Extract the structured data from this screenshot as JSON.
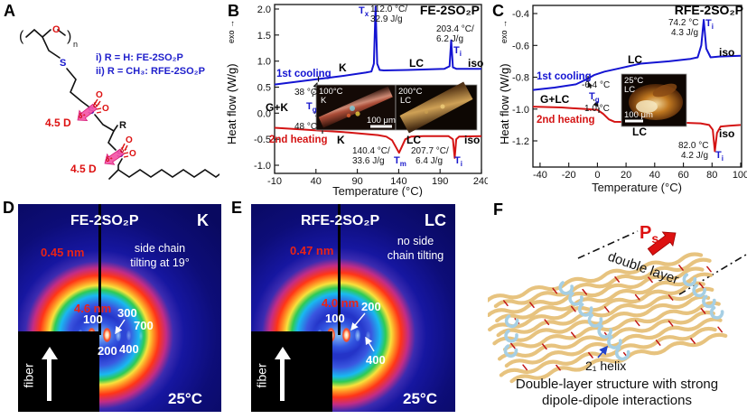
{
  "panels": {
    "a": {
      "letter": "A",
      "series_i": "i) R = H: FE-2SO₂P",
      "series_ii": "ii) R = CH₃: RFE-2SO₂P",
      "dipole_1": "4.5 D",
      "dipole_2": "4.5 D",
      "atom_o_backbone": "O",
      "atom_s_thioether": "S",
      "atom_s_sulfonyl_1": "S",
      "atom_s_sulfonyl_2": "S",
      "atom_o_1a": "O",
      "atom_o_1b": "O",
      "atom_o_2a": "O",
      "atom_o_2b": "O",
      "r_group": "R",
      "n_sub": "n",
      "paren_l": "(",
      "paren_r": ")",
      "delta_minus_1": "δ⁻",
      "delta_plus_1": "δ⁺",
      "delta_minus_2": "δ⁻",
      "delta_plus_2": "δ⁺"
    },
    "b": {
      "letter": "B",
      "title": "FE-2SO₂P",
      "ylabel": "Heat flow (W/g)",
      "exo": "exo →",
      "xlabel": "Temperature (°C)",
      "yticks": [
        "2.0",
        "1.5",
        "1.0",
        "0.5",
        "0.0",
        "-0.5",
        "-1.0"
      ],
      "xticks": [
        "-10",
        "40",
        "90",
        "140",
        "190",
        "240"
      ],
      "cooling_label": "1st cooling",
      "heating_label": "2nd heating",
      "phase_cool_k": "K",
      "phase_cool_lc": "LC",
      "phase_cool_iso": "iso",
      "phase_heat_k": "K",
      "phase_heat_lc": "LC",
      "phase_heat_iso": "iso",
      "phase_gk": "G+K",
      "tx": {
        "t": "T",
        "s": "x"
      },
      "tx_temp": "112.0 °C/",
      "tx_j": "32.9 J/g",
      "ti_cool_temp": "203.4 °C/",
      "ti_cool_j": "6.2 J/g",
      "ti_cool": {
        "t": "T",
        "s": "i"
      },
      "tg": {
        "t": "T",
        "s": "g"
      },
      "tg_cool": "38 °C",
      "tg_heat": "48 °C",
      "tm_temp": "140.4 °C/",
      "tm_j": "33.6 J/g",
      "tm": {
        "t": "T",
        "s": "m"
      },
      "ti_heat_temp": "207.7 °C/",
      "ti_heat_j": "6.4 J/g",
      "ti_heat": {
        "t": "T",
        "s": "i"
      },
      "inset": {
        "img1_temp": "100°C",
        "img1_phase": "K",
        "img2_temp": "200°C",
        "img2_phase": "LC",
        "scale": "100 μm"
      }
    },
    "c": {
      "letter": "C",
      "title": "RFE-2SO₂P",
      "ylabel": "Heat flow (W/g)",
      "exo": "exo →",
      "xlabel": "Temperature (°C)",
      "yticks": [
        "-0.4",
        "-0.6",
        "-0.8",
        "-1.0",
        "-1.2"
      ],
      "xticks": [
        "-40",
        "-20",
        "0",
        "20",
        "40",
        "60",
        "80",
        "100"
      ],
      "cooling_label": "1st cooling",
      "heating_label": "2nd heating",
      "phase_cool_lc": "LC",
      "phase_cool_iso": "iso",
      "phase_heat_lc": "LC",
      "phase_heat_iso": "iso",
      "phase_glc": "G+LC",
      "ti_cool_temp": "74.2 °C",
      "ti_cool_j": "4.3 J/g",
      "ti_cool": {
        "t": "T",
        "s": "i"
      },
      "tg": {
        "t": "T",
        "s": "g"
      },
      "tg_cool": "-6.4 °C",
      "tg_heat": "1.0 °C",
      "ti_heat_temp": "82.0 °C",
      "ti_heat_j": "4.2 J/g",
      "ti_heat": {
        "t": "T",
        "s": "i"
      },
      "inset": {
        "img_temp": "25°C",
        "img_phase": "LC",
        "scale": "100 μm"
      }
    },
    "d": {
      "letter": "D",
      "title": "FE-2SO₂P",
      "phase": "K",
      "note1": "side chain",
      "note2": "tilting at 19°",
      "ring_label": "0.45 nm",
      "inner_label": "4.6 nm",
      "idx_100": "100",
      "idx_200": "200",
      "idx_300": "300",
      "idx_400": "400",
      "idx_700": "700",
      "fiber": "fiber",
      "temp": "25°C"
    },
    "e": {
      "letter": "E",
      "title": "RFE-2SO₂P",
      "phase": "LC",
      "note1": "no side",
      "note2": "chain tilting",
      "ring_label": "0.47 nm",
      "inner_label": "4.0 nm",
      "idx_100": "100",
      "idx_200": "200",
      "idx_400": "400",
      "fiber": "fiber",
      "temp": "25°C"
    },
    "f": {
      "letter": "F",
      "ps": {
        "t": "P",
        "s": "s"
      },
      "double_layer": "double layer",
      "helix_label": "2₁ helix",
      "caption1": "Double-layer structure with strong",
      "caption2": "dipole-dipole interactions"
    }
  },
  "colors": {
    "cooling_blue": "#1414d2",
    "heating_red": "#d41414",
    "annotation_blue": "#1818cc",
    "structure_red": "#dd1111",
    "arrow_pink": "#f553a6",
    "xrd_label_red": "#e82318"
  },
  "chart_data": [
    {
      "panel": "B",
      "type": "line",
      "title": "FE-2SO₂P",
      "xlabel": "Temperature (°C)",
      "ylabel": "Heat flow (W/g)",
      "exo_direction": "up",
      "x_range": [
        -10,
        240
      ],
      "y_range": [
        -1.0,
        2.0
      ],
      "x_ticks": [
        -10,
        40,
        90,
        140,
        190,
        240
      ],
      "y_ticks": [
        2.0,
        1.5,
        1.0,
        0.5,
        0.0,
        -0.5,
        -1.0
      ],
      "series": [
        {
          "name": "1st cooling",
          "color": "#1414d2",
          "points": [
            [
              -10,
              0.55
            ],
            [
              30,
              0.63
            ],
            [
              70,
              0.71
            ],
            [
              100,
              0.78
            ],
            [
              107,
              0.8
            ],
            [
              110,
              0.95
            ],
            [
              112,
              2.05
            ],
            [
              114,
              0.95
            ],
            [
              117,
              0.83
            ],
            [
              122,
              0.82
            ],
            [
              150,
              0.83
            ],
            [
              195,
              0.85
            ],
            [
              201.5,
              0.9
            ],
            [
              203.4,
              1.4
            ],
            [
              205.5,
              0.88
            ],
            [
              210,
              0.85
            ],
            [
              240,
              0.85
            ]
          ]
        },
        {
          "name": "2nd heating",
          "color": "#d41414",
          "points": [
            [
              -10,
              -0.28
            ],
            [
              30,
              -0.32
            ],
            [
              80,
              -0.37
            ],
            [
              115,
              -0.42
            ],
            [
              125,
              -0.45
            ],
            [
              132,
              -0.52
            ],
            [
              140.4,
              -0.76
            ],
            [
              148,
              -0.5
            ],
            [
              155,
              -0.45
            ],
            [
              170,
              -0.44
            ],
            [
              200,
              -0.44
            ],
            [
              205.5,
              -0.5
            ],
            [
              207.7,
              -0.86
            ],
            [
              209.5,
              -0.5
            ],
            [
              213,
              -0.45
            ],
            [
              240,
              -0.44
            ]
          ]
        }
      ],
      "transitions": [
        {
          "symbol": "Tx",
          "temp_c": 112.0,
          "enthalpy_J_per_g": 32.9,
          "curve": "1st cooling"
        },
        {
          "symbol": "Ti",
          "temp_c": 203.4,
          "enthalpy_J_per_g": 6.2,
          "curve": "1st cooling"
        },
        {
          "symbol": "Tg",
          "temp_c": 38,
          "curve": "1st cooling"
        },
        {
          "symbol": "Tg",
          "temp_c": 48,
          "curve": "2nd heating"
        },
        {
          "symbol": "Tm",
          "temp_c": 140.4,
          "enthalpy_J_per_g": 33.6,
          "curve": "2nd heating"
        },
        {
          "symbol": "Ti",
          "temp_c": 207.7,
          "enthalpy_J_per_g": 6.4,
          "curve": "2nd heating"
        }
      ],
      "phase_labels": [
        "K",
        "LC",
        "iso",
        "G+K"
      ]
    },
    {
      "panel": "C",
      "type": "line",
      "title": "RFE-2SO₂P",
      "xlabel": "Temperature (°C)",
      "ylabel": "Heat flow (W/g)",
      "exo_direction": "up",
      "x_range": [
        -45,
        100
      ],
      "y_range": [
        -1.3,
        -0.35
      ],
      "x_ticks": [
        -40,
        -20,
        0,
        20,
        40,
        60,
        80,
        100
      ],
      "y_ticks": [
        -0.4,
        -0.6,
        -0.8,
        -1.0,
        -1.2
      ],
      "series": [
        {
          "name": "1st cooling",
          "color": "#1414d2",
          "points": [
            [
              -45,
              -0.88
            ],
            [
              -30,
              -0.865
            ],
            [
              -15,
              -0.845
            ],
            [
              -8,
              -0.815
            ],
            [
              -2,
              -0.785
            ],
            [
              5,
              -0.765
            ],
            [
              15,
              -0.745
            ],
            [
              30,
              -0.715
            ],
            [
              50,
              -0.7
            ],
            [
              65,
              -0.685
            ],
            [
              70,
              -0.675
            ],
            [
              72.5,
              -0.6
            ],
            [
              74.2,
              -0.44
            ],
            [
              76,
              -0.62
            ],
            [
              79,
              -0.675
            ],
            [
              85,
              -0.67
            ],
            [
              100,
              -0.665
            ]
          ]
        },
        {
          "name": "2nd heating",
          "color": "#d41414",
          "points": [
            [
              -45,
              -0.985
            ],
            [
              -25,
              -0.99
            ],
            [
              -8,
              -1.0
            ],
            [
              0,
              -1.005
            ],
            [
              4,
              -1.03
            ],
            [
              8,
              -1.065
            ],
            [
              12,
              -1.08
            ],
            [
              30,
              -1.082
            ],
            [
              55,
              -1.085
            ],
            [
              72,
              -1.09
            ],
            [
              78,
              -1.1
            ],
            [
              80.5,
              -1.13
            ],
            [
              82,
              -1.265
            ],
            [
              83.5,
              -1.15
            ],
            [
              86,
              -1.11
            ],
            [
              92,
              -1.105
            ],
            [
              100,
              -1.1
            ]
          ]
        }
      ],
      "transitions": [
        {
          "symbol": "Ti",
          "temp_c": 74.2,
          "enthalpy_J_per_g": 4.3,
          "curve": "1st cooling"
        },
        {
          "symbol": "Tg",
          "temp_c": -6.4,
          "curve": "1st cooling"
        },
        {
          "symbol": "Tg",
          "temp_c": 1.0,
          "curve": "2nd heating"
        },
        {
          "symbol": "Ti",
          "temp_c": 82.0,
          "enthalpy_J_per_g": 4.2,
          "curve": "2nd heating"
        }
      ],
      "phase_labels": [
        "LC",
        "iso",
        "G+LC"
      ]
    }
  ]
}
